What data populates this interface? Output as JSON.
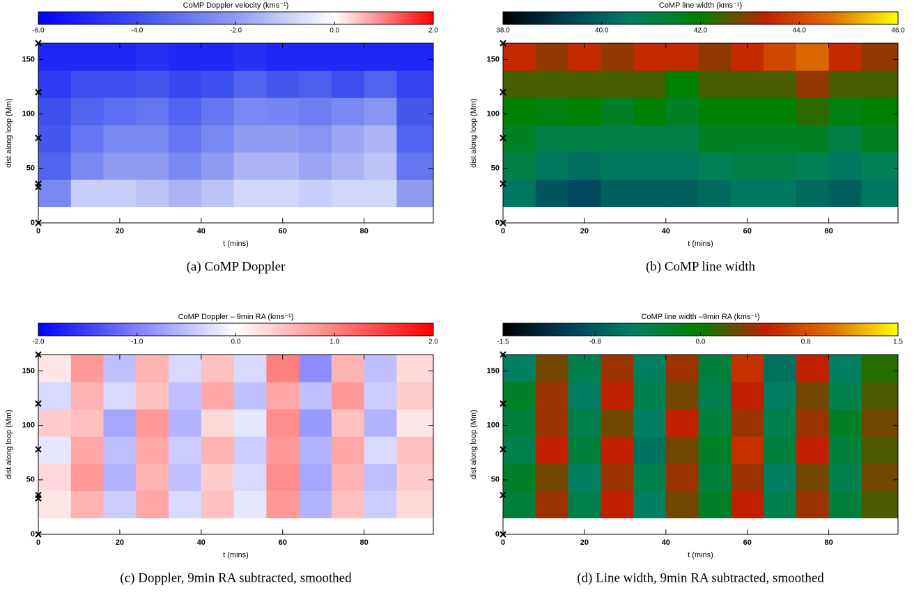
{
  "chart_data": [
    {
      "type": "heatmap",
      "title": "CoMP Doppler velocity (kms⁻¹)",
      "caption": "(a) CoMP Doppler",
      "x_label": "t (mins)",
      "y_label": "dist along loop (Mm)",
      "xlim": [
        0,
        97
      ],
      "ylim": [
        0,
        165
      ],
      "xticks": [
        0,
        20,
        40,
        60,
        80
      ],
      "yticks": [
        0,
        50,
        100,
        150
      ],
      "zlim": [
        -6,
        2
      ],
      "zticks": [
        {
          "value": -6,
          "label": "-6.0"
        },
        {
          "value": -4,
          "label": "-4.0"
        },
        {
          "value": -2,
          "label": "-2.0"
        },
        {
          "value": 0,
          "label": "0.0"
        },
        {
          "value": 2,
          "label": "2.0"
        }
      ],
      "colorscale": [
        "#0000ff",
        "#3c50ee",
        "#8f9cf2",
        "#ffffff",
        "#ff0000"
      ],
      "markers": [
        0,
        33,
        36,
        78,
        120,
        165
      ],
      "x_bins": [
        0,
        8,
        16,
        24,
        32,
        40,
        48,
        56,
        64,
        72,
        80,
        88,
        97
      ],
      "y_bins": [
        15,
        40,
        65,
        90,
        115,
        140,
        165
      ],
      "z": [
        [
          -2.5,
          -1,
          -1,
          -1.2,
          -1.5,
          -1.2,
          -0.8,
          -0.8,
          -1,
          -0.8,
          -0.8,
          -2
        ],
        [
          -3.5,
          -2.5,
          -2,
          -2,
          -2.5,
          -2,
          -1.5,
          -1.5,
          -1.8,
          -1.5,
          -1.2,
          -3
        ],
        [
          -3.8,
          -3,
          -2.5,
          -2.5,
          -3,
          -2.5,
          -2,
          -2,
          -2.2,
          -1.8,
          -1.5,
          -3.5
        ],
        [
          -4,
          -3.5,
          -3.2,
          -3,
          -3.5,
          -3,
          -2.5,
          -2.6,
          -2.8,
          -2.5,
          -2.2,
          -3.8
        ],
        [
          -4.5,
          -4,
          -4,
          -3.8,
          -4.2,
          -4,
          -3.5,
          -3.8,
          -3.6,
          -4,
          -3.5,
          -4.3
        ],
        [
          -5,
          -5,
          -5,
          -4.8,
          -5,
          -5,
          -4.8,
          -5,
          -5,
          -5,
          -5,
          -5
        ]
      ]
    },
    {
      "type": "heatmap",
      "title": "CoMP line width (kms⁻¹)",
      "caption": "(b) CoMP line width",
      "x_label": "t (mins)",
      "y_label": "dist along loop (Mm)",
      "xlim": [
        0,
        97
      ],
      "ylim": [
        0,
        165
      ],
      "xticks": [
        0,
        20,
        40,
        60,
        80
      ],
      "yticks": [
        0,
        50,
        100,
        150
      ],
      "zlim": [
        38,
        46
      ],
      "zticks": [
        {
          "value": 38,
          "label": "38.0"
        },
        {
          "value": 40,
          "label": "40.0"
        },
        {
          "value": 42,
          "label": "42.0"
        },
        {
          "value": 44,
          "label": "44.0"
        },
        {
          "value": 46,
          "label": "46.0"
        }
      ],
      "colorscale": [
        "#000000",
        "#00405a",
        "#008060",
        "#008000",
        "#c02000",
        "#e07000",
        "#ffff00"
      ],
      "markers": [
        0,
        36,
        78,
        120,
        165
      ],
      "x_bins": [
        0,
        8,
        16,
        24,
        32,
        40,
        48,
        56,
        64,
        72,
        80,
        88,
        97
      ],
      "y_bins": [
        15,
        40,
        65,
        90,
        115,
        140,
        165
      ],
      "z": [
        [
          40.5,
          39.8,
          39.5,
          40,
          40,
          40,
          40.2,
          40.5,
          40.5,
          40.2,
          40,
          40.5
        ],
        [
          41,
          40.5,
          40.3,
          40.5,
          40.5,
          40.5,
          40.8,
          41,
          41,
          40.8,
          40.5,
          40.8
        ],
        [
          41.5,
          41,
          41,
          41,
          41,
          41,
          41.5,
          41.5,
          41.5,
          41.5,
          41,
          41.5
        ],
        [
          42,
          41.8,
          42,
          41.5,
          42,
          41.5,
          42,
          42,
          42,
          42.3,
          41.8,
          42
        ],
        [
          42.5,
          42.5,
          42.5,
          42.5,
          42.5,
          42,
          42.5,
          42.5,
          42.5,
          43,
          42.5,
          42.5
        ],
        [
          43.5,
          43,
          43.5,
          43,
          43.5,
          43.5,
          43,
          43.5,
          44,
          44.5,
          43.5,
          43
        ]
      ]
    },
    {
      "type": "heatmap",
      "title": "CoMP Doppler – 9min RA (kms⁻¹)",
      "caption": "(c) Doppler, 9min RA subtracted, smoothed",
      "x_label": "t (mins)",
      "y_label": "dist along loop (Mm)",
      "xlim": [
        0,
        97
      ],
      "ylim": [
        0,
        165
      ],
      "xticks": [
        0,
        20,
        40,
        60,
        80
      ],
      "yticks": [
        0,
        50,
        100,
        150
      ],
      "zlim": [
        -2,
        2
      ],
      "zticks": [
        {
          "value": -2,
          "label": "-2.0"
        },
        {
          "value": -1,
          "label": "-1.0"
        },
        {
          "value": 0,
          "label": "0.0"
        },
        {
          "value": 1,
          "label": "1.0"
        },
        {
          "value": 2,
          "label": "2.0"
        }
      ],
      "colorscale": [
        "#0000ff",
        "#8080ff",
        "#ffffff",
        "#ff8080",
        "#ff0000"
      ],
      "markers": [
        0,
        33,
        36,
        78,
        120,
        165
      ],
      "x_bins": [
        0,
        8,
        16,
        24,
        32,
        40,
        48,
        56,
        64,
        72,
        80,
        88,
        97
      ],
      "y_bins": [
        15,
        40,
        65,
        90,
        115,
        140,
        165
      ],
      "z": [
        [
          0.2,
          0.6,
          -0.4,
          0.7,
          -0.3,
          0.5,
          -0.2,
          0.8,
          -0.6,
          0.5,
          -0.4,
          0.3
        ],
        [
          0.3,
          0.8,
          -0.6,
          0.6,
          -0.5,
          0.4,
          -0.3,
          0.9,
          -0.7,
          0.6,
          -0.5,
          0.4
        ],
        [
          -0.2,
          0.7,
          -0.5,
          0.7,
          -0.4,
          0.6,
          -0.4,
          0.8,
          -0.6,
          0.7,
          -0.3,
          0.5
        ],
        [
          0.4,
          0.5,
          -0.7,
          0.8,
          -0.6,
          0.3,
          -0.2,
          0.9,
          -0.8,
          0.5,
          -0.6,
          0.2
        ],
        [
          -0.3,
          0.6,
          -0.3,
          0.5,
          -0.5,
          0.7,
          -0.5,
          0.7,
          -0.5,
          0.8,
          -0.4,
          0.4
        ],
        [
          0.2,
          0.8,
          -0.5,
          0.6,
          -0.3,
          0.5,
          -0.3,
          1,
          -0.9,
          0.6,
          -0.5,
          0.3
        ]
      ]
    },
    {
      "type": "heatmap",
      "title": "CoMP line width –9min RA (kms⁻¹)",
      "caption": "(d) Line width, 9min RA subtracted, smoothed",
      "x_label": "t (mins)",
      "y_label": "dist along loop (Mm)",
      "xlim": [
        0,
        97
      ],
      "ylim": [
        0,
        165
      ],
      "xticks": [
        0,
        20,
        40,
        60,
        80
      ],
      "yticks": [
        0,
        50,
        100,
        150
      ],
      "zlim": [
        -1.5,
        1.5
      ],
      "zticks": [
        {
          "value": -1.5,
          "label": "-1.5"
        },
        {
          "value": -0.8,
          "label": "-0.8"
        },
        {
          "value": 0,
          "label": "0.0"
        },
        {
          "value": 0.8,
          "label": "0.8"
        },
        {
          "value": 1.5,
          "label": "1.5"
        }
      ],
      "colorscale": [
        "#000000",
        "#00405a",
        "#008060",
        "#008000",
        "#c02000",
        "#e07000",
        "#ffff00"
      ],
      "markers": [
        0,
        36,
        78,
        120,
        165
      ],
      "x_bins": [
        0,
        8,
        16,
        24,
        32,
        40,
        48,
        56,
        64,
        72,
        80,
        88,
        97
      ],
      "y_bins": [
        15,
        40,
        65,
        90,
        115,
        140,
        165
      ],
      "z": [
        [
          -0.3,
          0.4,
          -0.4,
          0.5,
          -0.5,
          0.3,
          -0.2,
          0.5,
          -0.4,
          0.4,
          -0.3,
          0.2
        ],
        [
          -0.2,
          0.3,
          -0.5,
          0.4,
          -0.4,
          0.4,
          -0.3,
          0.4,
          -0.5,
          0.3,
          -0.4,
          0.3
        ],
        [
          -0.4,
          0.5,
          -0.3,
          0.5,
          -0.6,
          0.3,
          -0.2,
          0.6,
          -0.3,
          0.5,
          -0.3,
          0.2
        ],
        [
          -0.3,
          0.4,
          -0.4,
          0.3,
          -0.5,
          0.5,
          -0.3,
          0.4,
          -0.4,
          0.4,
          -0.2,
          0.3
        ],
        [
          -0.2,
          0.4,
          -0.5,
          0.5,
          -0.4,
          0.3,
          -0.4,
          0.5,
          -0.5,
          0.3,
          -0.4,
          0.2
        ],
        [
          -0.5,
          0.3,
          -0.4,
          0.4,
          -0.5,
          0.4,
          -0.3,
          0.6,
          -0.6,
          0.5,
          -0.5,
          0.1
        ]
      ]
    }
  ]
}
